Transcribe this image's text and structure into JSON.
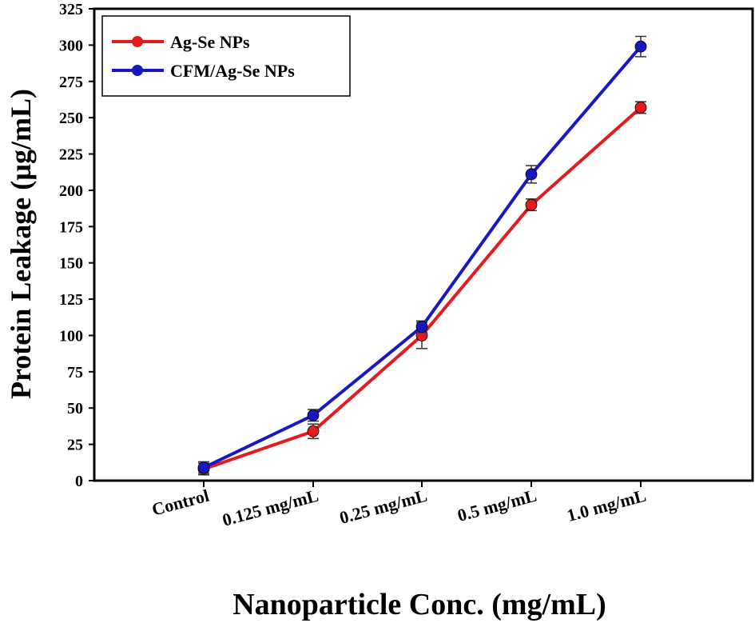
{
  "chart_data": {
    "type": "line",
    "xlabel": "Nanoparticle Conc. (mg/mL)",
    "ylabel": "Protein Leakage (µg/mL)",
    "categories": [
      "Control",
      "0.125 mg/mL",
      "0.25 mg/mL",
      "0.5 mg/mL",
      "1.0 mg/mL"
    ],
    "ylim": [
      0,
      325
    ],
    "yticks": [
      0,
      25,
      50,
      75,
      100,
      125,
      150,
      175,
      200,
      225,
      250,
      275,
      300,
      325
    ],
    "grid": false,
    "legend_position": "top-left",
    "series": [
      {
        "name": "Ag-Se NPs",
        "color": "#e41a1c",
        "values": [
          8,
          34,
          100,
          190,
          257
        ],
        "errors": [
          4,
          5,
          9,
          4,
          4
        ]
      },
      {
        "name": "CFM/Ag-Se NPs",
        "color": "#1818c0",
        "values": [
          9,
          45,
          106,
          211,
          299
        ],
        "errors": [
          4,
          4,
          4,
          6,
          7
        ]
      }
    ]
  }
}
